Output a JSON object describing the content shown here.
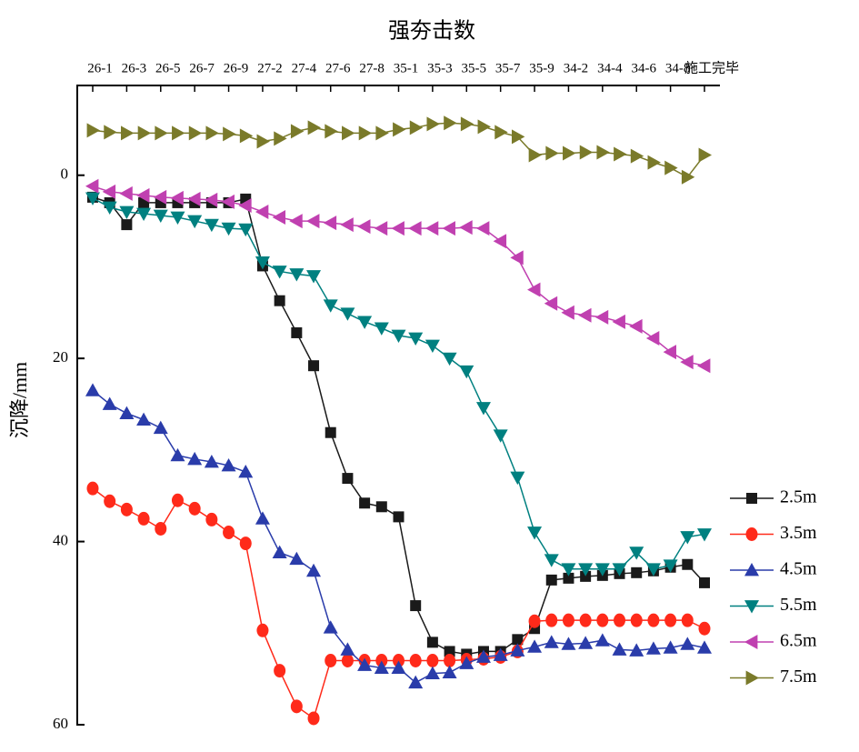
{
  "chart_data": {
    "type": "line",
    "x_title": "强夯击数",
    "y_title": "沉降/mm",
    "categories": [
      "26-1",
      null,
      "26-3",
      null,
      "26-5",
      null,
      "26-7",
      null,
      "26-9",
      null,
      "27-2",
      null,
      "27-4",
      null,
      "27-6",
      null,
      "27-8",
      null,
      "35-1",
      null,
      "35-3",
      null,
      "35-5",
      null,
      "35-7",
      null,
      "35-9",
      null,
      "34-2",
      null,
      "34-4",
      null,
      "34-6",
      null,
      "34-8",
      null,
      "施工完毕"
    ],
    "ylim": [
      -10,
      60
    ],
    "yticks": [
      0,
      20,
      40,
      60
    ],
    "y_inverted": true,
    "legend": "right",
    "series": [
      {
        "name": "2.5m",
        "color": "#1a1a1a",
        "marker": "square",
        "values": [
          2.4,
          3,
          5.4,
          3,
          3,
          3,
          3,
          3,
          3,
          2.6,
          9.9,
          13.7,
          17.2,
          20.8,
          28.1,
          33.1,
          35.8,
          36.2,
          37.3,
          47,
          51,
          52,
          52.3,
          52,
          52,
          50.7,
          49.5,
          44.2,
          44,
          43.8,
          43.7,
          43.5,
          43.4,
          43.2,
          42.8,
          42.5,
          44.5
        ]
      },
      {
        "name": "3.5m",
        "color": "#ff2a1a",
        "marker": "circle",
        "values": [
          34.2,
          35.6,
          36.5,
          37.5,
          38.6,
          35.5,
          36.4,
          37.6,
          39,
          40.2,
          49.7,
          54.1,
          58,
          59.3,
          53,
          53,
          53,
          53,
          53,
          53,
          53,
          53,
          52.9,
          52.8,
          52.6,
          52,
          48.7,
          48.6,
          48.6,
          48.6,
          48.6,
          48.6,
          48.6,
          48.6,
          48.6,
          48.6,
          49.5
        ]
      },
      {
        "name": "4.5m",
        "color": "#2a3caa",
        "marker": "triangle-up",
        "values": [
          23.5,
          25,
          26,
          26.7,
          27.6,
          30.6,
          31,
          31.3,
          31.7,
          32.4,
          37.5,
          41.2,
          41.9,
          43.2,
          49.4,
          51.8,
          53.5,
          53.8,
          53.8,
          55.4,
          54.4,
          54.3,
          53.3,
          52.6,
          52.4,
          51.9,
          51.5,
          51,
          51.2,
          51.1,
          50.8,
          51.8,
          51.9,
          51.7,
          51.6,
          51.2,
          51.6
        ]
      },
      {
        "name": "5.5m",
        "color": "#008080",
        "marker": "triangle-down",
        "values": [
          2.5,
          3.5,
          4,
          4.2,
          4.4,
          4.6,
          5,
          5.4,
          5.8,
          5.9,
          9.5,
          10.5,
          10.8,
          11,
          14.2,
          15.1,
          16,
          16.7,
          17.5,
          17.8,
          18.6,
          20,
          21.4,
          25.4,
          28.4,
          33,
          39,
          42,
          43,
          43,
          43,
          43,
          41.2,
          43,
          42.6,
          39.5,
          39.2
        ]
      },
      {
        "name": "6.5m",
        "color": "#c040b0",
        "marker": "triangle-left",
        "values": [
          1.2,
          1.8,
          2,
          2.2,
          2.4,
          2.5,
          2.6,
          2.7,
          2.9,
          3.3,
          4,
          4.6,
          5,
          5,
          5.2,
          5.4,
          5.6,
          5.8,
          5.8,
          5.8,
          5.8,
          5.8,
          5.7,
          5.8,
          7.2,
          9,
          12.5,
          14,
          15,
          15.3,
          15.5,
          16,
          16.5,
          17.8,
          19.3,
          20.4,
          20.8
        ]
      },
      {
        "name": "7.5m",
        "color": "#7a7a2a",
        "marker": "triangle-right",
        "values": [
          -4.9,
          -4.7,
          -4.6,
          -4.6,
          -4.6,
          -4.6,
          -4.6,
          -4.6,
          -4.5,
          -4.3,
          -3.7,
          -4,
          -4.8,
          -5.2,
          -4.8,
          -4.6,
          -4.6,
          -4.6,
          -5,
          -5.2,
          -5.6,
          -5.7,
          -5.6,
          -5.3,
          -4.7,
          -4.2,
          -2.2,
          -2.4,
          -2.4,
          -2.5,
          -2.5,
          -2.3,
          -2.1,
          -1.4,
          -0.8,
          0.2,
          -2.2
        ]
      }
    ]
  }
}
